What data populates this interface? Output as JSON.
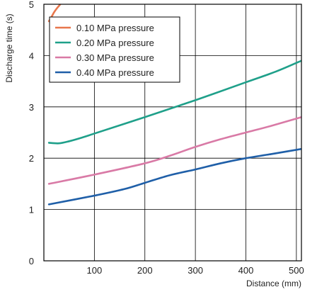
{
  "chart_data": {
    "type": "line",
    "title": "",
    "xlabel": "Distance (mm)",
    "ylabel": "Discharge time (s)",
    "xlim": [
      0,
      510
    ],
    "ylim": [
      0,
      5
    ],
    "xticks": [
      100,
      200,
      300,
      400,
      500
    ],
    "yticks": [
      0,
      1,
      2,
      3,
      4,
      5
    ],
    "grid": true,
    "legend_position": "top-left",
    "series": [
      {
        "name": "0.10 MPa pressure",
        "color": "#e8774c",
        "x": [
          10,
          15,
          20,
          25,
          30,
          35
        ],
        "y": [
          4.67,
          4.75,
          4.84,
          4.91,
          4.97,
          5.03
        ]
      },
      {
        "name": "0.20 MPa pressure",
        "color": "#1fa08a",
        "x": [
          10,
          30,
          50,
          75,
          100,
          200,
          300,
          400,
          460,
          510
        ],
        "y": [
          2.3,
          2.29,
          2.33,
          2.4,
          2.48,
          2.8,
          3.13,
          3.48,
          3.69,
          3.9
        ]
      },
      {
        "name": "0.30 MPa pressure",
        "color": "#d97aa6",
        "x": [
          10,
          100,
          200,
          250,
          300,
          350,
          400,
          450,
          510
        ],
        "y": [
          1.5,
          1.68,
          1.9,
          2.05,
          2.22,
          2.37,
          2.5,
          2.63,
          2.8
        ]
      },
      {
        "name": "0.40 MPa pressure",
        "color": "#1f5fa8",
        "x": [
          10,
          100,
          160,
          200,
          250,
          300,
          350,
          400,
          450,
          510
        ],
        "y": [
          1.1,
          1.27,
          1.4,
          1.52,
          1.67,
          1.78,
          1.9,
          2.0,
          2.08,
          2.18
        ]
      }
    ]
  }
}
